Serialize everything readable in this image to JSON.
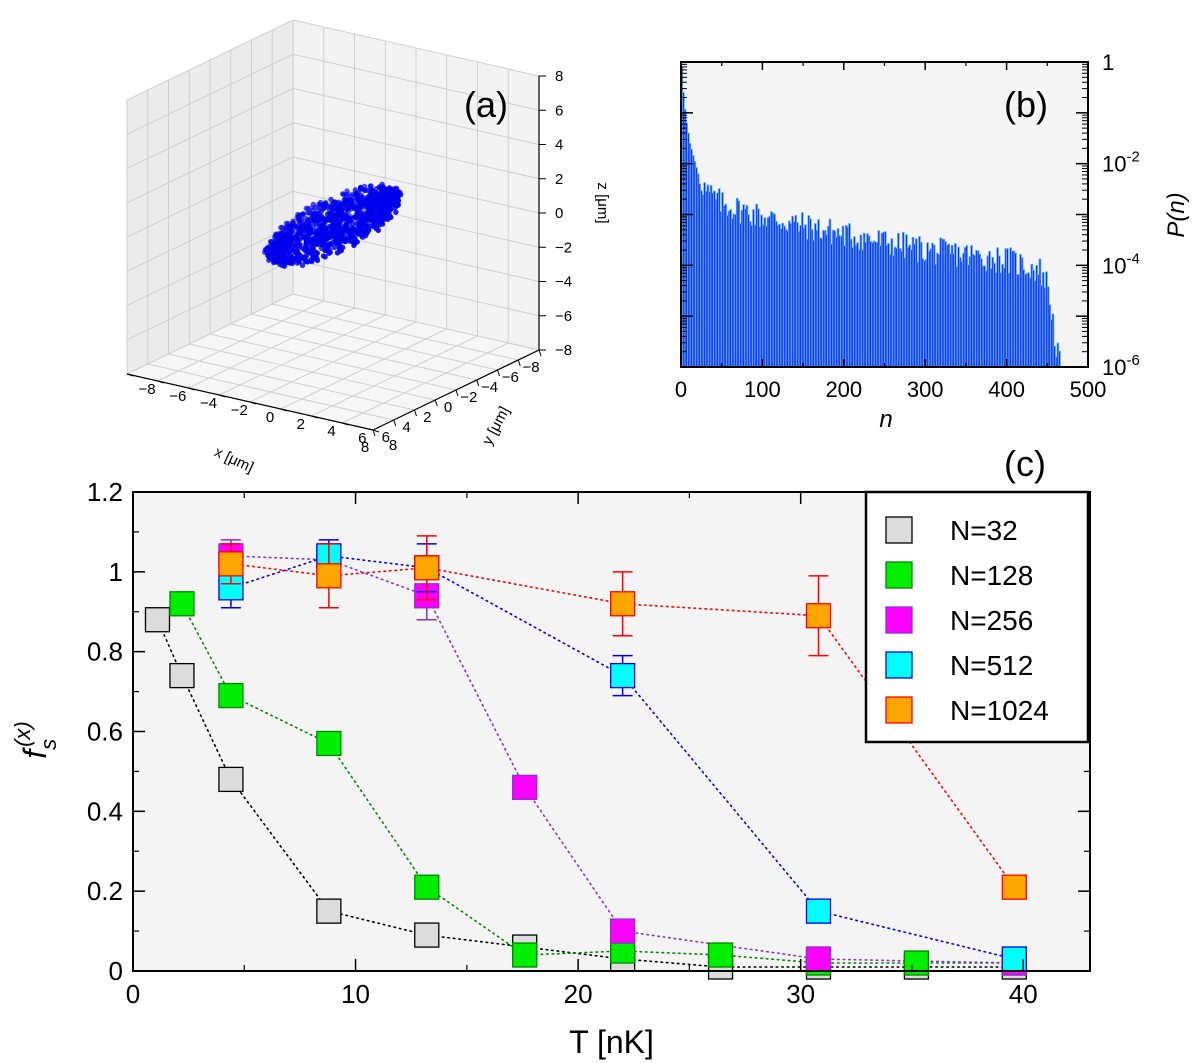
{
  "chart_data": [
    {
      "panel": "(a)",
      "type": "scatter",
      "projection": "3d",
      "xlabel": "x [μm]",
      "ylabel": "y [μm]",
      "zlabel": "z [μm]",
      "xlim": [
        -8,
        8
      ],
      "ylim": [
        -8,
        8
      ],
      "zlim": [
        -8,
        8
      ],
      "xticks": [
        "−8",
        "−6",
        "−4",
        "−2",
        "0",
        "2",
        "4",
        "6",
        "8"
      ],
      "yticks": [
        "−8",
        "−6",
        "−4",
        "−2",
        "0",
        "2",
        "4",
        "6",
        "8"
      ],
      "zticks": [
        "8",
        "6",
        "4",
        "2",
        "0",
        "−2",
        "−4",
        "−6",
        "−8"
      ],
      "point_color": "#0000ee",
      "cloud": {
        "description_count": 1024,
        "x_extent": [
          -6,
          6
        ],
        "y_extent": [
          -1.5,
          1.5
        ],
        "z_extent": [
          -1.5,
          1.5
        ]
      }
    },
    {
      "panel": "(b)",
      "type": "bar",
      "xlabel": "n",
      "ylabel": "P(n)",
      "xlim": [
        0,
        500
      ],
      "ylim_log10": [
        -6,
        0
      ],
      "xticks": [
        "0",
        "100",
        "200",
        "300",
        "400",
        "500"
      ],
      "yticks": [
        {
          "base": "1",
          "exp": ""
        },
        {
          "base": "10",
          "exp": "-2"
        },
        {
          "base": "10",
          "exp": "-4"
        },
        {
          "base": "10",
          "exp": "-6"
        }
      ],
      "bar_color": "#0000dd",
      "edge_color": "#55aaff",
      "profile_log10": [
        [
          0,
          -0.1
        ],
        [
          2,
          -0.6
        ],
        [
          5,
          -1.1
        ],
        [
          10,
          -1.6
        ],
        [
          20,
          -2.2
        ],
        [
          30,
          -2.55
        ],
        [
          50,
          -2.8
        ],
        [
          100,
          -3.05
        ],
        [
          200,
          -3.4
        ],
        [
          300,
          -3.7
        ],
        [
          400,
          -3.9
        ],
        [
          440,
          -4.1
        ],
        [
          450,
          -4.4
        ],
        [
          460,
          -5.6
        ],
        [
          465,
          -6.0
        ]
      ]
    },
    {
      "panel": "(c)",
      "type": "scatter",
      "xlabel": "T [nK]",
      "ylabel_base": "f",
      "ylabel_sub": "s",
      "ylabel_sup": "(x)",
      "xlim": [
        0,
        43
      ],
      "ylim": [
        0,
        1.2
      ],
      "xticks": [
        "0",
        "10",
        "20",
        "30",
        "40"
      ],
      "yticks": [
        "0",
        "0.2",
        "0.4",
        "0.6",
        "0.8",
        "1",
        "1.2"
      ],
      "legend_position": "top-right",
      "series": [
        {
          "name": "N=32",
          "fill": "#dcdcdc",
          "line": "#000000",
          "x": [
            1.1,
            2.2,
            4.4,
            8.8,
            13.2,
            17.6,
            22,
            26.4,
            30.8,
            35.2,
            39.6
          ],
          "y": [
            0.88,
            0.74,
            0.48,
            0.15,
            0.09,
            0.06,
            0.03,
            0.01,
            0.01,
            0.01,
            0.01
          ],
          "err": [
            0.01,
            0.01,
            0.01,
            0.01,
            0.01,
            0.005,
            0.005,
            0.005,
            0.005,
            0.005,
            0.005
          ]
        },
        {
          "name": "N=128",
          "fill": "#00ee00",
          "line": "#008800",
          "x": [
            2.2,
            4.4,
            8.8,
            13.2,
            17.6,
            22,
            26.4,
            30.8,
            35.2,
            39.6
          ],
          "y": [
            0.92,
            0.69,
            0.57,
            0.21,
            0.04,
            0.05,
            0.04,
            0.02,
            0.02,
            0.02
          ],
          "err": [
            0.01,
            0.01,
            0.01,
            0.01,
            0.005,
            0.005,
            0.005,
            0.005,
            0.005,
            0.005
          ]
        },
        {
          "name": "N=256",
          "fill": "#ff00ff",
          "line": "#8833cc",
          "x": [
            4.4,
            8.8,
            13.2,
            17.6,
            22,
            30.8,
            39.6
          ],
          "y": [
            1.04,
            1.03,
            0.94,
            0.46,
            0.1,
            0.03,
            0.02
          ],
          "err": [
            0.04,
            0.04,
            0.06,
            0.01,
            0.01,
            0.005,
            0.005
          ]
        },
        {
          "name": "N=512",
          "fill": "#00ffff",
          "line": "#0000ee",
          "x": [
            4.4,
            8.8,
            13.2,
            22,
            30.8,
            39.6
          ],
          "y": [
            0.96,
            1.04,
            1.01,
            0.74,
            0.15,
            0.03
          ],
          "err": [
            0.05,
            0.04,
            0.06,
            0.05,
            0.01,
            0.005
          ]
        },
        {
          "name": "N=1024",
          "fill": "#ffa500",
          "line": "#ff0000",
          "x": [
            4.4,
            8.8,
            13.2,
            22,
            30.8,
            39.6
          ],
          "y": [
            1.02,
            0.99,
            1.01,
            0.92,
            0.89,
            0.21
          ],
          "err": [
            0.05,
            0.08,
            0.08,
            0.08,
            0.1,
            0.01
          ]
        }
      ]
    }
  ]
}
